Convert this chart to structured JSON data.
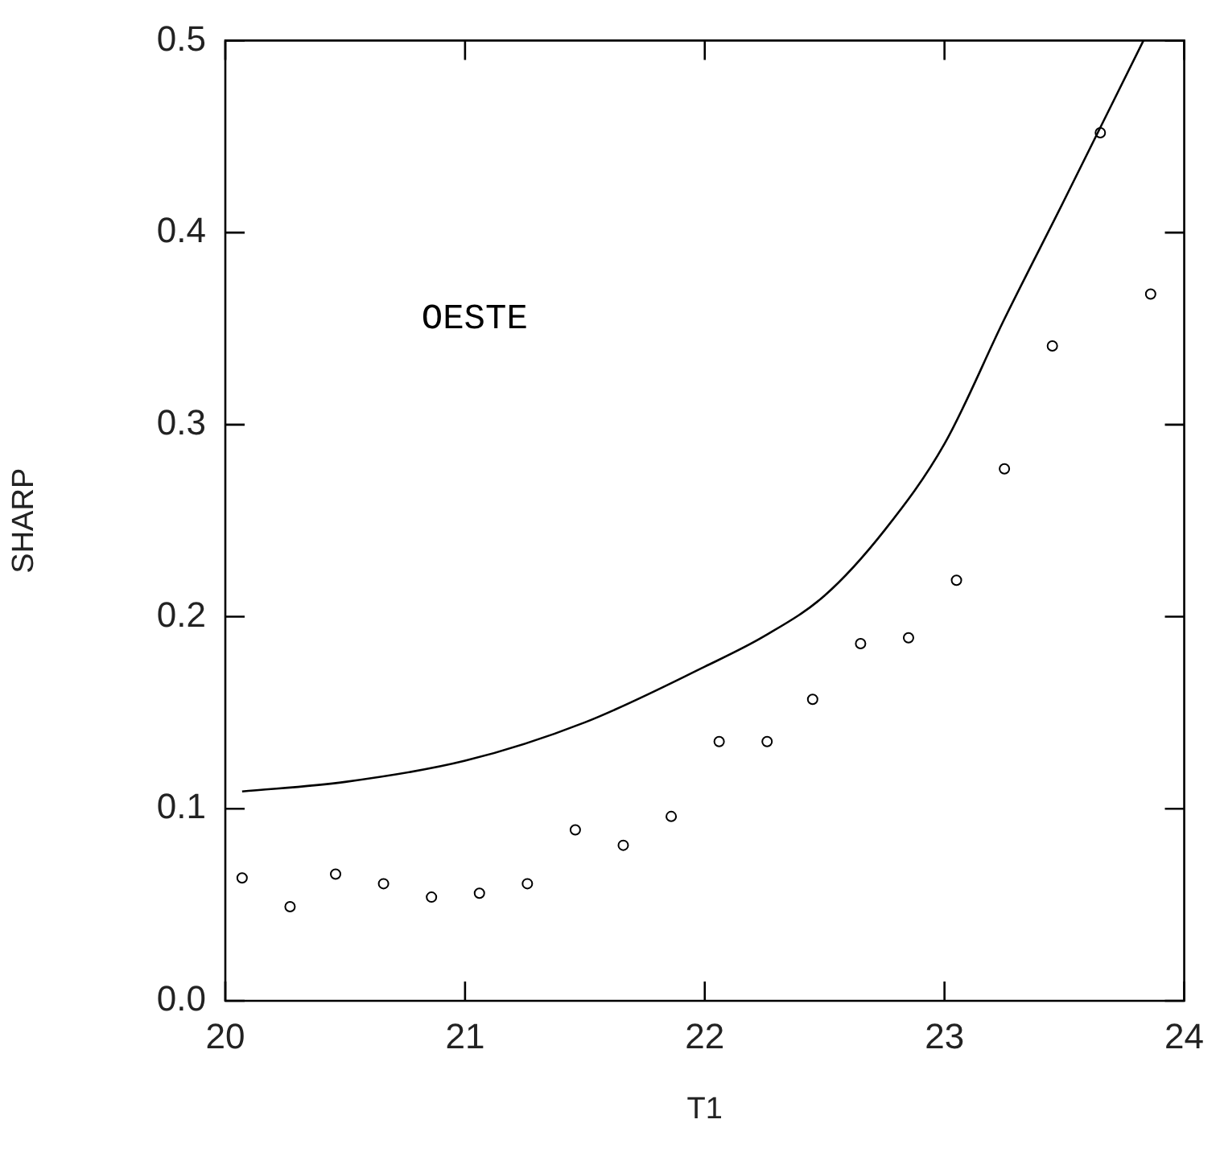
{
  "chart_data": {
    "type": "scatter",
    "xlabel": "T1",
    "ylabel": "SHARP",
    "xlim": [
      20,
      24
    ],
    "ylim": [
      0,
      0.5
    ],
    "xticks": [
      20,
      21,
      22,
      23,
      24
    ],
    "yticks": [
      {
        "value": 0,
        "label": "0.0"
      },
      {
        "value": 0.1,
        "label": "0.1"
      },
      {
        "value": 0.2,
        "label": "0.2"
      },
      {
        "value": 0.3,
        "label": "0.3"
      },
      {
        "value": 0.4,
        "label": "0.4"
      },
      {
        "value": 0.5,
        "label": "0.5"
      }
    ],
    "grid": false,
    "legend": false,
    "annotations": [
      "OESTE"
    ],
    "series": [
      {
        "marker": "circle",
        "color": "#000000",
        "x": [
          20.07,
          20.27,
          20.46,
          20.66,
          20.86,
          21.06,
          21.26,
          21.46,
          21.66,
          21.86,
          22.06,
          22.26,
          22.45,
          22.65,
          22.85,
          23.05,
          23.25,
          23.45,
          23.65,
          23.86
        ],
        "values": [
          0.064,
          0.049,
          0.066,
          0.061,
          0.054,
          0.056,
          0.061,
          0.089,
          0.081,
          0.096,
          0.135,
          0.135,
          0.157,
          0.186,
          0.189,
          0.219,
          0.277,
          0.341,
          0.452,
          0.368
        ]
      },
      {
        "type": "line",
        "marker": "none",
        "line_style": "solid",
        "color": "#000000",
        "x": [
          20.07,
          20.5,
          21,
          21.5,
          22,
          22.25,
          22.5,
          22.75,
          23,
          23.25,
          23.5,
          23.83
        ],
        "values": [
          0.109,
          0.114,
          0.125,
          0.145,
          0.174,
          0.19,
          0.211,
          0.245,
          0.29,
          0.355,
          0.417,
          0.5
        ]
      }
    ]
  }
}
